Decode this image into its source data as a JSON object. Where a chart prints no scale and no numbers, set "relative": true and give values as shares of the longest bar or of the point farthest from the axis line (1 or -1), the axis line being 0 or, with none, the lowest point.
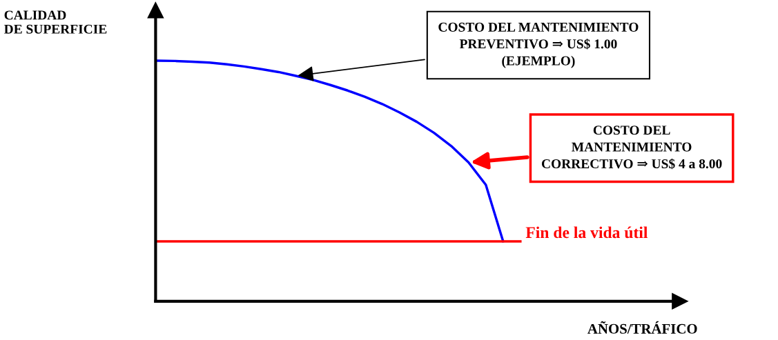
{
  "chart_data": {
    "type": "line",
    "relative": true,
    "xlabel": "AÑOS/TRÁFICO",
    "ylabel": "CALIDAD\nDE SUPERFICIE",
    "marker": "none",
    "line_style": "solid",
    "categories": [
      null,
      null,
      null,
      null,
      null,
      null,
      null,
      null,
      null,
      null,
      null,
      null,
      null,
      null,
      null,
      null,
      null,
      null,
      null,
      null,
      null,
      null
    ],
    "series": [
      {
        "color": "#0000ff",
        "values": [
          1.0,
          0.999,
          0.996,
          0.992,
          0.985,
          0.976,
          0.965,
          0.953,
          0.937,
          0.92,
          0.899,
          0.876,
          0.85,
          0.82,
          0.785,
          0.746,
          0.7,
          0.645,
          0.577,
          0.484,
          0.249,
          null
        ]
      },
      {
        "name": "Fin de la vida útil",
        "color": "#ff0000",
        "values": [
          0.249,
          0.249,
          0.249,
          0.249,
          0.249,
          0.249,
          0.249,
          0.249,
          0.249,
          0.249,
          0.249,
          0.249,
          0.249,
          0.249,
          0.249,
          0.249,
          0.249,
          0.249,
          0.249,
          0.249,
          0.249,
          0.249
        ]
      }
    ],
    "annotations": [
      "COSTO DEL MANTENIMIENTO\nPREVENTIVO ⇒ US$ 1.00\n(EJEMPLO)",
      "COSTO DEL\nMANTENIMIENTO\nCORRECTIVO ⇒ US$ 4 a 8.00"
    ]
  }
}
